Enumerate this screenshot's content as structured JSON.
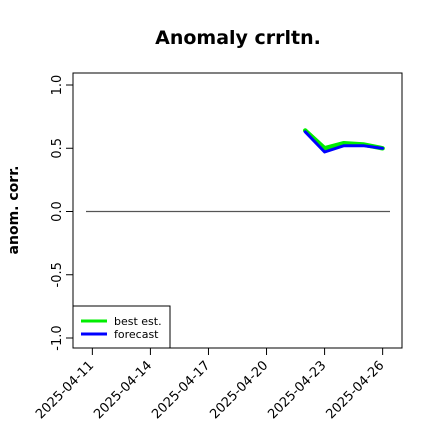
{
  "chart_data": {
    "type": "line",
    "title": "Anomaly crrltn.",
    "xlabel": "",
    "ylabel": "anom. corr.",
    "x_ticks": [
      "2025-04-11",
      "2025-04-14",
      "2025-04-17",
      "2025-04-20",
      "2025-04-23",
      "2025-04-26"
    ],
    "x_tick_colors": [
      "#000000",
      "#000000",
      "#228B22",
      "#000000",
      "#000000",
      "#000000"
    ],
    "xlim": [
      "2025-04-10",
      "2025-04-27"
    ],
    "ylim": [
      -1.0,
      1.0
    ],
    "y_ticks": [
      -1.0,
      -0.5,
      0.0,
      0.5,
      1.0
    ],
    "y_tick_labels": [
      "-1.0",
      "-0.5",
      "0.0",
      "0.5",
      "1.0"
    ],
    "reference_line": {
      "y": 0.0,
      "color": "#555555"
    },
    "series": [
      {
        "name": "best est.",
        "color": "#00ee00",
        "x": [
          "2025-04-22",
          "2025-04-23",
          "2025-04-24",
          "2025-04-25",
          "2025-04-26"
        ],
        "values": [
          0.64,
          0.5,
          0.54,
          0.53,
          0.5
        ]
      },
      {
        "name": "forecast",
        "color": "#0000ff",
        "x": [
          "2025-04-22",
          "2025-04-23",
          "2025-04-24",
          "2025-04-25",
          "2025-04-26"
        ],
        "values": [
          0.63,
          0.47,
          0.52,
          0.52,
          0.5
        ]
      }
    ],
    "legend_position": "bottom-left",
    "grid": false
  }
}
